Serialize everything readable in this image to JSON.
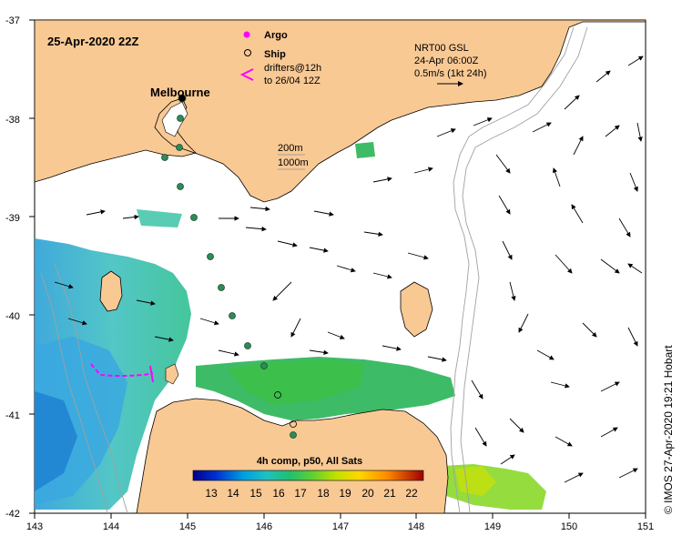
{
  "map": {
    "title_date": "25-Apr-2020 22Z",
    "city_label": "Melbourne",
    "credit": "© IMOS 27-Apr-2020 19:21 Hobart",
    "x_ticks": [
      "143",
      "144",
      "145",
      "146",
      "147",
      "148",
      "149",
      "150",
      "151"
    ],
    "y_ticks": [
      "-37",
      "-38",
      "-39",
      "-40",
      "-41",
      "-42"
    ],
    "legend": {
      "argo": "Argo",
      "ship": "Ship",
      "drifters_line1": "drifters@12h",
      "drifters_line2": "to 26/04 12Z",
      "depth_200": "200m",
      "depth_1000": "1000m"
    },
    "current_box": {
      "line1": "NRT00 GSL",
      "line2": "24-Apr 06:00Z",
      "line3": "0.5m/s (1kt 24h)"
    },
    "colorbar": {
      "title": "4h comp, p50, All Sats",
      "labels": [
        "13",
        "14",
        "15",
        "16",
        "17",
        "18",
        "19",
        "20",
        "21",
        "22"
      ]
    },
    "colors": {
      "land": "#f9c994",
      "ocean": "#ffffff",
      "argo": "#ff00ff",
      "ship_track": "#2e8b57",
      "drifters": "#ff00ff"
    }
  }
}
